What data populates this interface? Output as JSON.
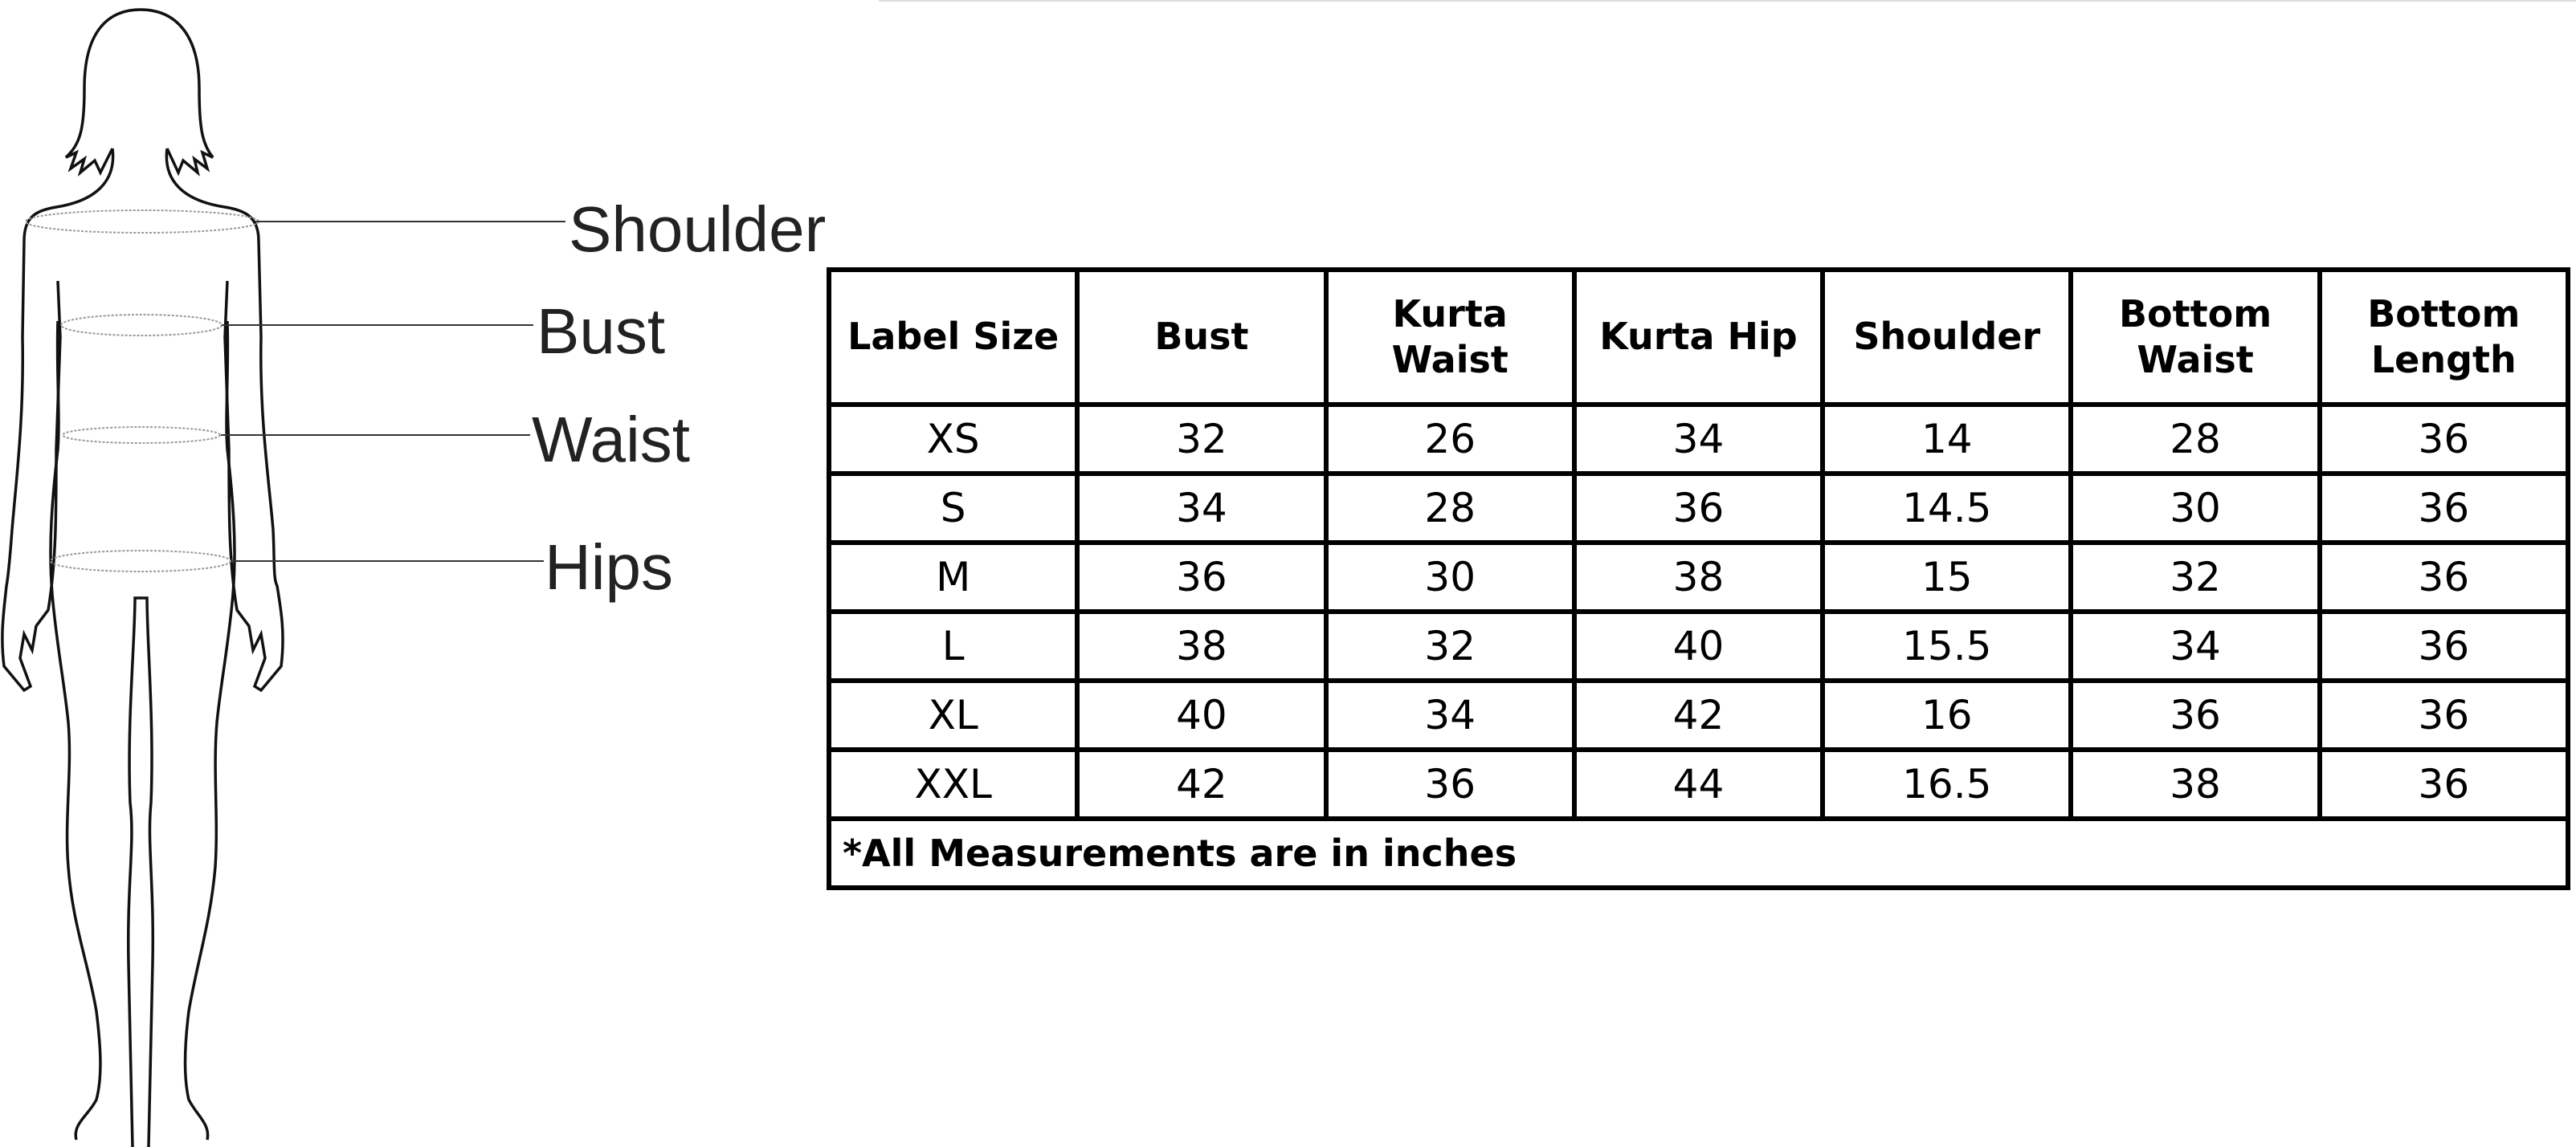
{
  "measure_labels": {
    "shoulder": "Shoulder",
    "bust": "Bust",
    "waist": "Waist",
    "hips": "Hips"
  },
  "size_chart": {
    "headers": [
      "Label Size",
      "Bust",
      "Kurta Waist",
      "Kurta Hip",
      "Shoulder",
      "Bottom Waist",
      "Bottom Length"
    ],
    "rows": [
      [
        "XS",
        "32",
        "26",
        "34",
        "14",
        "28",
        "36"
      ],
      [
        "S",
        "34",
        "28",
        "36",
        "14.5",
        "30",
        "36"
      ],
      [
        "M",
        "36",
        "30",
        "38",
        "15",
        "32",
        "36"
      ],
      [
        "L",
        "38",
        "32",
        "40",
        "15.5",
        "34",
        "36"
      ],
      [
        "XL",
        "40",
        "34",
        "42",
        "16",
        "36",
        "36"
      ],
      [
        "XXL",
        "42",
        "36",
        "44",
        "16.5",
        "38",
        "36"
      ]
    ],
    "footnote": "*All Measurements are in inches"
  }
}
